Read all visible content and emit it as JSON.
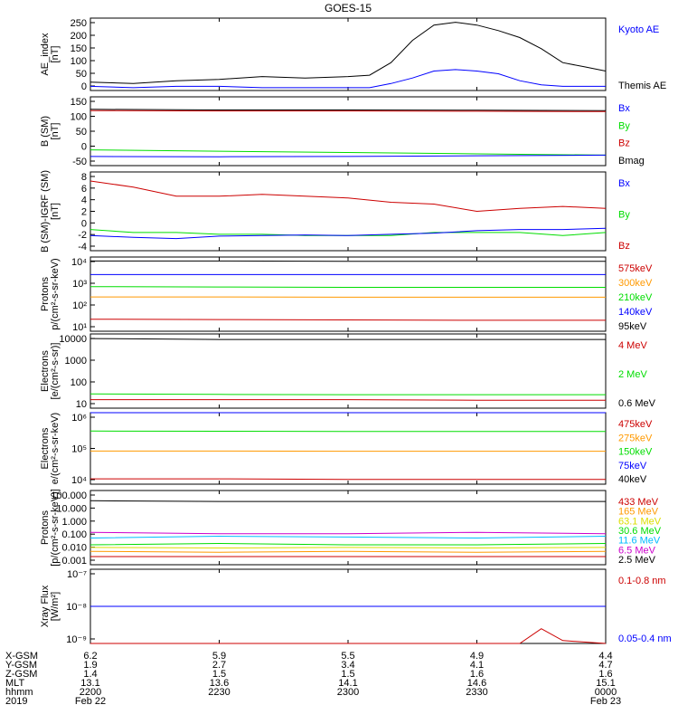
{
  "title": "GOES-15",
  "colors": {
    "black": "#000000",
    "blue": "#0000ff",
    "green": "#00dd00",
    "red": "#cc0000",
    "orange": "#ff9900",
    "yellow": "#dddd00",
    "cyan": "#00bbff",
    "magenta": "#cc00cc"
  },
  "panels": [
    {
      "ylabel": [
        "AE_index",
        "[nT]"
      ],
      "ticks": [
        "250",
        "200",
        "150",
        "100",
        "50",
        "0"
      ],
      "legend": [
        {
          "text": "Kyoto AE",
          "color": "#0000ff"
        },
        {
          "text": "Themis AE",
          "color": "#000000"
        }
      ]
    },
    {
      "ylabel": [
        "B (SM)",
        "[nT]"
      ],
      "ticks": [
        "150",
        "100",
        "50",
        "0",
        "-50"
      ],
      "legend": [
        {
          "text": "Bx",
          "color": "#0000ff"
        },
        {
          "text": "By",
          "color": "#00dd00"
        },
        {
          "text": "Bz",
          "color": "#cc0000"
        },
        {
          "text": "Bmag",
          "color": "#000000"
        }
      ]
    },
    {
      "ylabel": [
        "B (SM)-IGRF (SM)",
        "[nT]"
      ],
      "ticks": [
        "8",
        "6",
        "4",
        "2",
        "0",
        "-2",
        "-4"
      ],
      "legend": [
        {
          "text": "Bx",
          "color": "#0000ff"
        },
        {
          "text": "By",
          "color": "#00dd00"
        },
        {
          "text": "Bz",
          "color": "#cc0000"
        }
      ]
    },
    {
      "ylabel": [
        "Protons",
        "p/(cm²-s-sr-keV)"
      ],
      "ticks": [
        "10⁴",
        "10³",
        "10²",
        "10¹"
      ],
      "legend": [
        {
          "text": "575keV",
          "color": "#cc0000"
        },
        {
          "text": "300keV",
          "color": "#ff9900"
        },
        {
          "text": "210keV",
          "color": "#00dd00"
        },
        {
          "text": "140keV",
          "color": "#0000ff"
        },
        {
          "text": "95keV",
          "color": "#000000"
        }
      ]
    },
    {
      "ylabel": [
        "Electrons",
        "[e/(cm²-s-sr)]"
      ],
      "ticks": [
        "10000",
        "1000",
        "100",
        "10"
      ],
      "legend": [
        {
          "text": "4 MeV",
          "color": "#cc0000"
        },
        {
          "text": "2 MeV",
          "color": "#00dd00"
        },
        {
          "text": "0.6 MeV",
          "color": "#000000"
        }
      ]
    },
    {
      "ylabel": [
        "Electrons",
        "e/(cm²-s-sr-keV)"
      ],
      "ticks": [
        "10⁶",
        "10⁵",
        "10⁴"
      ],
      "legend": [
        {
          "text": "475keV",
          "color": "#cc0000"
        },
        {
          "text": "275keV",
          "color": "#ff9900"
        },
        {
          "text": "150keV",
          "color": "#00dd00"
        },
        {
          "text": "75keV",
          "color": "#0000ff"
        },
        {
          "text": "40keV",
          "color": "#000000"
        }
      ]
    },
    {
      "ylabel": [
        "Protons",
        "[p/(cm²-s-sr-keV)]"
      ],
      "ticks": [
        "100.000",
        "10.000",
        "1.000",
        "0.100",
        "0.010",
        "0.001"
      ],
      "legend": [
        {
          "text": "433 MeV",
          "color": "#cc0000"
        },
        {
          "text": "165 MeV",
          "color": "#ff9900"
        },
        {
          "text": "63.1 MeV",
          "color": "#dddd00"
        },
        {
          "text": "30.6 MeV",
          "color": "#00dd00"
        },
        {
          "text": "11.6 MeV",
          "color": "#00bbff"
        },
        {
          "text": "6.5 MeV",
          "color": "#cc00cc"
        },
        {
          "text": "2.5 MeV",
          "color": "#000000"
        }
      ]
    },
    {
      "ylabel": [
        "Xray Flux",
        "[W/m²]"
      ],
      "ticks": [
        "10⁻⁷",
        "10⁻⁸",
        "10⁻⁹"
      ],
      "legend": [
        {
          "text": "0.1-0.8 nm",
          "color": "#cc0000"
        },
        {
          "text": "0.05-0.4 nm",
          "color": "#0000ff"
        }
      ]
    }
  ],
  "footer": {
    "rows": [
      {
        "label": "X-GSM",
        "values": [
          "6.2",
          "5.9",
          "5.5",
          "4.9",
          "4.4"
        ]
      },
      {
        "label": "Y-GSM",
        "values": [
          "1.9",
          "2.7",
          "3.4",
          "4.1",
          "4.7"
        ]
      },
      {
        "label": "Z-GSM",
        "values": [
          "1.4",
          "1.5",
          "1.5",
          "1.6",
          "1.6"
        ]
      },
      {
        "label": "MLT",
        "values": [
          "13.1",
          "13.6",
          "14.1",
          "14.6",
          "15.1"
        ]
      },
      {
        "label": "hhmm",
        "values": [
          "2200",
          "2230",
          "2300",
          "2330",
          "0000"
        ]
      }
    ],
    "year": "2019",
    "date_start": "Feb 22",
    "date_end": "Feb 23"
  },
  "chart_data": [
    {
      "type": "line",
      "x": [
        "2200",
        "2210",
        "2220",
        "2230",
        "2240",
        "2250",
        "2300",
        "2305",
        "2310",
        "2315",
        "2320",
        "2325",
        "2330",
        "2335",
        "2340",
        "2345",
        "2350",
        "2355",
        "0000"
      ],
      "ylim": [
        0,
        260
      ],
      "series": [
        {
          "name": "Themis AE",
          "color": "#000000",
          "values": [
            30,
            25,
            35,
            40,
            50,
            45,
            50,
            55,
            100,
            180,
            235,
            245,
            235,
            215,
            190,
            150,
            100,
            85,
            70
          ]
        },
        {
          "name": "Kyoto AE",
          "color": "#0000ff",
          "values": [
            15,
            10,
            15,
            15,
            10,
            10,
            10,
            10,
            25,
            45,
            70,
            75,
            70,
            60,
            35,
            20,
            15,
            15,
            15
          ]
        }
      ]
    },
    {
      "type": "line",
      "x": [
        "2200",
        "2230",
        "2300",
        "2330",
        "0000"
      ],
      "ylim": [
        -60,
        150
      ],
      "series": [
        {
          "name": "Bmag",
          "color": "#000000",
          "values": [
            112,
            110,
            110,
            109,
            108
          ]
        },
        {
          "name": "Bz",
          "color": "#cc0000",
          "values": [
            108,
            107,
            107,
            106,
            105
          ]
        },
        {
          "name": "By",
          "color": "#00dd00",
          "values": [
            -12,
            -16,
            -20,
            -24,
            -28
          ]
        },
        {
          "name": "Bx",
          "color": "#0000ff",
          "values": [
            -32,
            -33,
            -32,
            -30,
            -28
          ]
        }
      ]
    },
    {
      "type": "line",
      "x": [
        "2200",
        "2210",
        "2220",
        "2230",
        "2240",
        "2250",
        "2300",
        "2310",
        "2320",
        "2330",
        "2340",
        "2350",
        "0000"
      ],
      "ylim": [
        -4.5,
        8.5
      ],
      "series": [
        {
          "name": "Bz",
          "color": "#cc0000",
          "values": [
            7,
            6,
            4.5,
            4.5,
            4.8,
            4.5,
            4.2,
            3.5,
            3.2,
            2,
            2.5,
            2.8,
            2.5
          ]
        },
        {
          "name": "By",
          "color": "#00dd00",
          "values": [
            -1,
            -1.5,
            -1.5,
            -1.8,
            -1.8,
            -2,
            -2,
            -2,
            -1.5,
            -1.5,
            -1.5,
            -2,
            -1.5
          ]
        },
        {
          "name": "Bx",
          "color": "#0000ff",
          "values": [
            -2,
            -2.3,
            -2.5,
            -2.1,
            -2,
            -1.9,
            -2,
            -1.8,
            -1.6,
            -1.2,
            -1,
            -1,
            -0.8
          ]
        }
      ]
    },
    {
      "type": "line",
      "x": [
        "2200",
        "2230",
        "2300",
        "2330",
        "0000"
      ],
      "log": true,
      "ylim": [
        6,
        40000
      ],
      "series": [
        {
          "name": "95keV",
          "color": "#000000",
          "values": [
            25000,
            25000,
            24000,
            24000,
            24000
          ]
        },
        {
          "name": "140keV",
          "color": "#0000ff",
          "values": [
            5000,
            5000,
            5000,
            5000,
            5000
          ]
        },
        {
          "name": "210keV",
          "color": "#00dd00",
          "values": [
            1200,
            1150,
            1100,
            1100,
            1100
          ]
        },
        {
          "name": "300keV",
          "color": "#ff9900",
          "values": [
            350,
            350,
            340,
            340,
            340
          ]
        },
        {
          "name": "575keV",
          "color": "#cc0000",
          "values": [
            25,
            24,
            23,
            22,
            22
          ]
        }
      ]
    },
    {
      "type": "line",
      "x": [
        "2200",
        "2230",
        "2300",
        "2330",
        "0000"
      ],
      "log": true,
      "ylim": [
        10,
        10000
      ],
      "series": [
        {
          "name": "0.6 MeV",
          "color": "#000000",
          "values": [
            6500,
            6000,
            6000,
            6000,
            6000
          ]
        },
        {
          "name": "2 MeV",
          "color": "#00dd00",
          "values": [
            38,
            36,
            35,
            35,
            35
          ]
        },
        {
          "name": "4 MeV",
          "color": "#cc0000",
          "values": [
            22,
            22,
            22,
            21,
            21
          ]
        }
      ]
    },
    {
      "type": "line",
      "x": [
        "2200",
        "2230",
        "2300",
        "2330",
        "0000"
      ],
      "log": true,
      "ylim": [
        8000,
        1000000
      ],
      "series": [
        {
          "name": "40keV",
          "color": "#000000",
          "values": [
            1000000,
            1000000,
            1000000,
            1000000,
            1000000
          ]
        },
        {
          "name": "75keV",
          "color": "#0000ff",
          "values": [
            1000000,
            1000000,
            1000000,
            1000000,
            1000000
          ]
        },
        {
          "name": "150keV",
          "color": "#00dd00",
          "values": [
            290000,
            285000,
            280000,
            280000,
            280000
          ]
        },
        {
          "name": "275keV",
          "color": "#ff9900",
          "values": [
            75000,
            75000,
            74000,
            74000,
            74000
          ]
        },
        {
          "name": "475keV",
          "color": "#cc0000",
          "values": [
            11500,
            11500,
            11000,
            11000,
            11000
          ]
        }
      ]
    },
    {
      "type": "line",
      "x": [
        "2200",
        "2230",
        "2300",
        "2330",
        "0000"
      ],
      "log": true,
      "ylim": [
        0.0008,
        130
      ],
      "series": [
        {
          "name": "2.5 MeV",
          "color": "#000000",
          "values": [
            25,
            22,
            22,
            22,
            22
          ]
        },
        {
          "name": "6.5 MeV",
          "color": "#cc00cc",
          "values": [
            0.15,
            0.12,
            0.12,
            0.15,
            0.12
          ]
        },
        {
          "name": "11.6 MeV",
          "color": "#00bbff",
          "values": [
            0.06,
            0.08,
            0.07,
            0.06,
            0.08
          ]
        },
        {
          "name": "30.6 MeV",
          "color": "#00dd00",
          "values": [
            0.02,
            0.025,
            0.02,
            0.02,
            0.025
          ]
        },
        {
          "name": "63.1 MeV",
          "color": "#dddd00",
          "values": [
            0.013,
            0.012,
            0.013,
            0.012,
            0.013
          ]
        },
        {
          "name": "165 MeV",
          "color": "#ff9900",
          "values": [
            0.007,
            0.006,
            0.007,
            0.006,
            0.007
          ]
        },
        {
          "name": "433 MeV",
          "color": "#cc0000",
          "values": [
            0.003,
            0.003,
            0.003,
            0.003,
            0.003
          ]
        }
      ]
    },
    {
      "type": "line",
      "x": [
        "2200",
        "2230",
        "2300",
        "2330",
        "2340",
        "2345",
        "2350",
        "0000"
      ],
      "log": true,
      "ylim": [
        1e-09,
        1e-07
      ],
      "series": [
        {
          "name": "0.05-0.4 nm",
          "color": "#0000ff",
          "values": [
            1e-08,
            1e-08,
            1e-08,
            1e-08,
            1e-08,
            1e-08,
            1e-08,
            1e-08
          ]
        },
        {
          "name": "0.1-0.8 nm",
          "color": "#cc0000",
          "values": [
            1e-09,
            1e-09,
            1e-09,
            1e-09,
            1e-09,
            2.5e-09,
            1.2e-09,
            1e-09
          ]
        }
      ]
    }
  ]
}
